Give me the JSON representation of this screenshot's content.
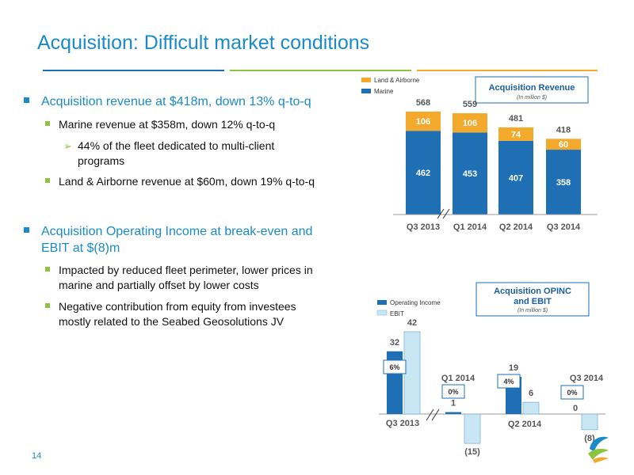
{
  "slide": {
    "title": "Acquisition: Difficult market conditions",
    "page_number": "14",
    "bullets": [
      {
        "text": "Acquisition revenue at $418m, down 13% q-to-q",
        "subs": [
          {
            "text": "Marine revenue at $358m, down 12% q-to-q",
            "subsubs": [
              "44% of the fleet dedicated to multi-client",
              "programs"
            ]
          },
          {
            "text": "Land & Airborne revenue at $60m, down 19% q-to-q"
          }
        ]
      },
      {
        "text_lines": [
          "Acquisition Operating Income at break-even and",
          "EBIT at $(8)m"
        ],
        "subs": [
          {
            "text_lines": [
              "Impacted by reduced fleet perimeter, lower prices in",
              "marine and partially offset by lower costs"
            ]
          },
          {
            "text_lines": [
              "Negative contribution from equity from investees",
              "mostly related to the Seabed Geosolutions JV"
            ]
          }
        ]
      }
    ]
  },
  "colors": {
    "title": "#1a8bc8",
    "marine": "#1f6fb5",
    "land": "#f2a92c",
    "opinc": "#1f6fb5",
    "ebit": "#c9e6f5"
  },
  "chart_data": [
    {
      "type": "bar",
      "stacked": true,
      "title": "Acquisition Revenue",
      "subtitle": "(In million $)",
      "categories": [
        "Q3 2013",
        "Q1 2014",
        "Q2 2014",
        "Q3 2014"
      ],
      "series": [
        {
          "name": "Marine",
          "values": [
            462,
            453,
            407,
            358
          ]
        },
        {
          "name": "Land & Airborne",
          "values": [
            106,
            106,
            74,
            60
          ]
        }
      ],
      "totals": [
        568,
        559,
        481,
        418
      ],
      "ylim": [
        0,
        600
      ],
      "legend": "top-left",
      "axis_break_after": 0
    },
    {
      "type": "bar",
      "stacked": false,
      "title_lines": [
        "Acquisition OPINC",
        "and EBIT"
      ],
      "subtitle": "(In million $)",
      "categories": [
        "Q3 2013",
        "Q1 2014",
        "Q2 2014",
        "Q3 2014"
      ],
      "series": [
        {
          "name": "Operating Income",
          "values": [
            32,
            1,
            19,
            0
          ]
        },
        {
          "name": "EBIT",
          "values": [
            42,
            -15,
            6,
            -8
          ]
        }
      ],
      "value_labels": {
        "Operating Income": [
          "32",
          "1",
          "19",
          "0"
        ],
        "EBIT": [
          "42",
          "(15)",
          "6",
          "(8)"
        ]
      },
      "margins": [
        "6%",
        "0%",
        "4%",
        "0%"
      ],
      "ylim": [
        -20,
        45
      ],
      "legend": "top-left",
      "axis_break_after": 0
    }
  ]
}
